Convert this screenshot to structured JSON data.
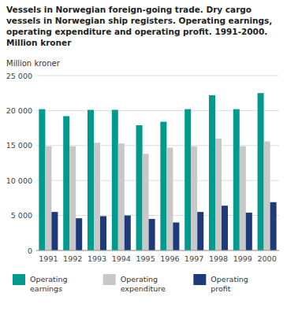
{
  "chart_data": {
    "type": "bar",
    "title": "Vessels in Norwegian foreign-going trade. Dry cargo\nvessels in Norwegian ship registers. Operating earnings,\noperating expenditure and operating profit. 1991-2000.\nMillion kroner",
    "ylabel": "Million kroner",
    "categories": [
      "1991",
      "1992",
      "1993",
      "1994",
      "1995",
      "1996",
      "1997",
      "1998",
      "1999",
      "2000"
    ],
    "series": [
      {
        "name": "Operating\nearnings",
        "color": "#009B8D",
        "values": [
          20200,
          19200,
          20100,
          20100,
          17900,
          18400,
          20200,
          22200,
          20200,
          22500
        ]
      },
      {
        "name": "Operating\nexpenditure",
        "color": "#C8C8C8",
        "values": [
          14900,
          14900,
          15400,
          15300,
          13800,
          14700,
          14900,
          16000,
          14900,
          15600
        ]
      },
      {
        "name": "Operating\nprofit",
        "color": "#1F3A7A",
        "values": [
          5500,
          4600,
          4900,
          5000,
          4500,
          4000,
          5500,
          6400,
          5400,
          6900
        ]
      }
    ],
    "ylim": [
      0,
      25000
    ],
    "yticks": [
      0,
      {
        "value": 5000,
        "label": "5 000"
      },
      {
        "value": 10000,
        "label": "10 000"
      },
      {
        "value": 15000,
        "label": "15 000"
      },
      {
        "value": 20000,
        "label": "20 000"
      },
      {
        "value": 25000,
        "label": "25 000"
      }
    ],
    "grid": true,
    "legend": "bottom"
  }
}
